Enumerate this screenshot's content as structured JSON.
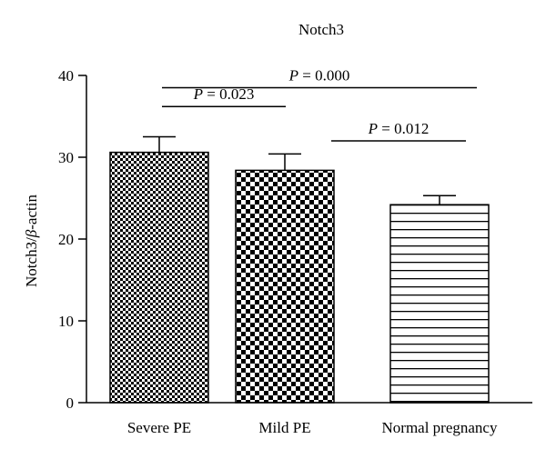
{
  "chart_data": {
    "type": "bar",
    "title": "Notch3",
    "ylabel_prefix": "Notch3/",
    "ylabel_italic": "β",
    "ylabel_suffix": "-actin",
    "ylim": [
      0,
      40
    ],
    "yticks": [
      0,
      10,
      20,
      30,
      40
    ],
    "categories": [
      "Severe PE",
      "Mild PE",
      "Normal pregnancy"
    ],
    "values": [
      30.6,
      28.4,
      24.2
    ],
    "errors": [
      1.9,
      2.0,
      1.1
    ],
    "patterns": [
      "fine-checker",
      "coarse-checker",
      "horizontal-lines"
    ],
    "comparisons": [
      {
        "from": 0,
        "to": 2,
        "p_prefix": "P",
        "p_value": " = 0.000",
        "line_y": 38.5
      },
      {
        "from": 0,
        "to": 1,
        "p_prefix": "P",
        "p_value": " = 0.023",
        "line_y": 36.2
      },
      {
        "from": 1,
        "to": 2,
        "p_prefix": "P",
        "p_value": " = 0.012",
        "line_y": 32.0
      }
    ]
  }
}
